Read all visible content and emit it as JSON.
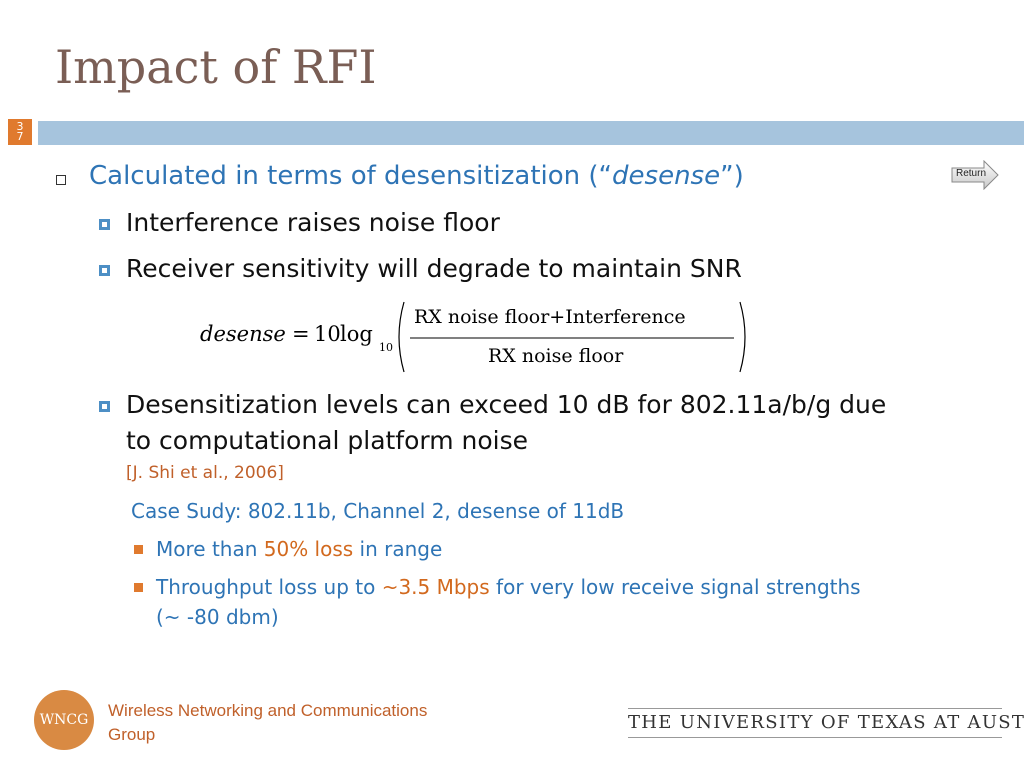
{
  "slide": {
    "title": "Impact of RFI",
    "number_top": "3",
    "number_bottom": "7",
    "return_label": "Return"
  },
  "content": {
    "b1_prefix": "Calculated in terms of desensitization (“",
    "b1_italic": "desense",
    "b1_suffix": "”)",
    "b2": "Interference raises noise floor",
    "b3": "Receiver sensitivity will degrade to maintain SNR",
    "equation": {
      "lhs": "desense",
      "eq": "=",
      "coef": "10",
      "log": "log",
      "base": "10",
      "numerator": "RX noise floor+Interference",
      "denominator": "RX noise floor"
    },
    "b4_line1": "Desensitization levels can exceed 10 dB for 802.11a/b/g due",
    "b4_line2": "to computational platform noise",
    "citation": "[J. Shi et al., 2006]",
    "case_study": "Case Sudy: 802.11b, Channel 2, desense of 11dB",
    "c1_prefix": "More than ",
    "c1_highlight": "50% loss",
    "c1_suffix": " in range",
    "c2_prefix": "Throughput loss up to ",
    "c2_highlight": "~3.5 Mbps",
    "c2_suffix": " for very low receive signal strengths",
    "c2_line2": "(~ -80 dbm)"
  },
  "footer": {
    "logo_text": "WNCG",
    "group_line1": "Wireless Networking and Communications",
    "group_line2": "Group",
    "university": "THE UNIVERSITY OF TEXAS AT AUSTIN"
  },
  "colors": {
    "title": "#7a5e55",
    "accent_blue": "#2e74b5",
    "accent_orange": "#e07a2e",
    "bar": "#a6c4dd"
  }
}
